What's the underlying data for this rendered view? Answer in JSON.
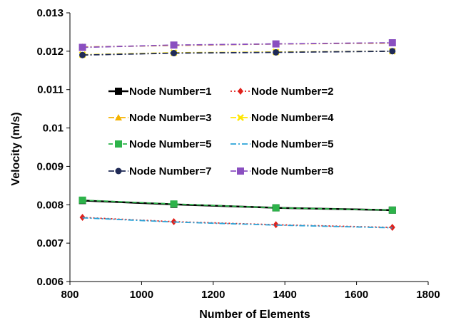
{
  "chart_data": {
    "type": "line",
    "xlabel": "Number of Elements",
    "ylabel": "Velocity (m/s)",
    "xlim": [
      800,
      1800
    ],
    "ylim": [
      0.006,
      0.013
    ],
    "xticks": [
      "800",
      "1000",
      "1200",
      "1400",
      "1600",
      "1800"
    ],
    "yticks": [
      "0.006",
      "0.007",
      "0.008",
      "0.009",
      "0.01",
      "0.011",
      "0.012",
      "0.013"
    ],
    "grid": false,
    "legend_position": "center-left, two columns",
    "x": [
      835,
      1090,
      1375,
      1700
    ],
    "series": [
      {
        "name": "Node Number=1",
        "values": [
          0.00811,
          0.00801,
          0.00792,
          0.00786
        ],
        "color": "#000000",
        "marker": "square",
        "dash": "solid"
      },
      {
        "name": "Node Number=2",
        "values": [
          0.00767,
          0.00756,
          0.00748,
          0.00741
        ],
        "color": "#e0201b",
        "marker": "diamond",
        "dash": "dotted"
      },
      {
        "name": "Node Number=3",
        "values": [
          0.01211,
          0.01215,
          0.01219,
          0.01221
        ],
        "color": "#f5b300",
        "marker": "triangle",
        "dash": "dashdot"
      },
      {
        "name": "Node Number=4",
        "values": [
          0.01191,
          0.01196,
          0.01198,
          0.012
        ],
        "color": "#ffe600",
        "marker": "x",
        "dash": "dashdot"
      },
      {
        "name": "Node Number=5",
        "values": [
          0.00812,
          0.00802,
          0.00792,
          0.00786
        ],
        "color": "#2db34a",
        "marker": "square",
        "dash": "dashed"
      },
      {
        "name": "Node Number=5",
        "values": [
          0.00766,
          0.00755,
          0.00747,
          0.0074
        ],
        "color": "#2aa3d8",
        "marker": "none",
        "dash": "dashdot"
      },
      {
        "name": "Node Number=7",
        "values": [
          0.0119,
          0.01195,
          0.01197,
          0.012
        ],
        "color": "#1f2a56",
        "marker": "circle",
        "dash": "dashdot"
      },
      {
        "name": "Node Number=8",
        "values": [
          0.0121,
          0.01216,
          0.01219,
          0.01222
        ],
        "color": "#8a4fc0",
        "marker": "square",
        "dash": "dashdot"
      }
    ]
  }
}
